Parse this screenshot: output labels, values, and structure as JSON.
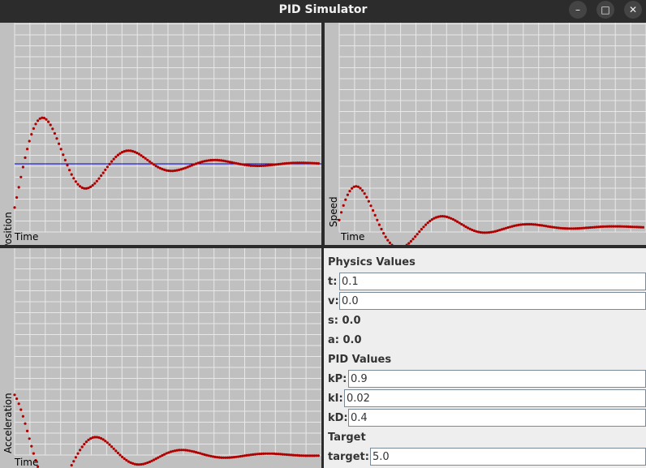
{
  "window": {
    "title": "PID Simulator",
    "minimize": "–",
    "maximize": "□",
    "close": "✕"
  },
  "plots": {
    "position": {
      "ylabel": "Position",
      "xlabel": "Time"
    },
    "speed": {
      "ylabel": "Speed",
      "xlabel": "Time"
    },
    "acceleration": {
      "ylabel": "Acceleration",
      "xlabel": "Time"
    }
  },
  "colors": {
    "curve": "#b00000",
    "target_line": "#0000cc",
    "grid": "#e8e8e8",
    "plot_bg": "#c0c0c0"
  },
  "form": {
    "physics_title": "Physics Values",
    "t_label": "t:",
    "t_value": "0.1",
    "v_label": "v:",
    "v_value": "0.0",
    "s_text": "s: 0.0",
    "a_text": "a: 0.0",
    "pid_title": "PID Values",
    "kp_label": "kP:",
    "kp_value": "0.9",
    "ki_label": "kI:",
    "ki_value": "0.02",
    "kd_label": "kD:",
    "kd_value": "0.4",
    "target_title": "Target",
    "target_label": "target:",
    "target_value": "5.0"
  }
}
